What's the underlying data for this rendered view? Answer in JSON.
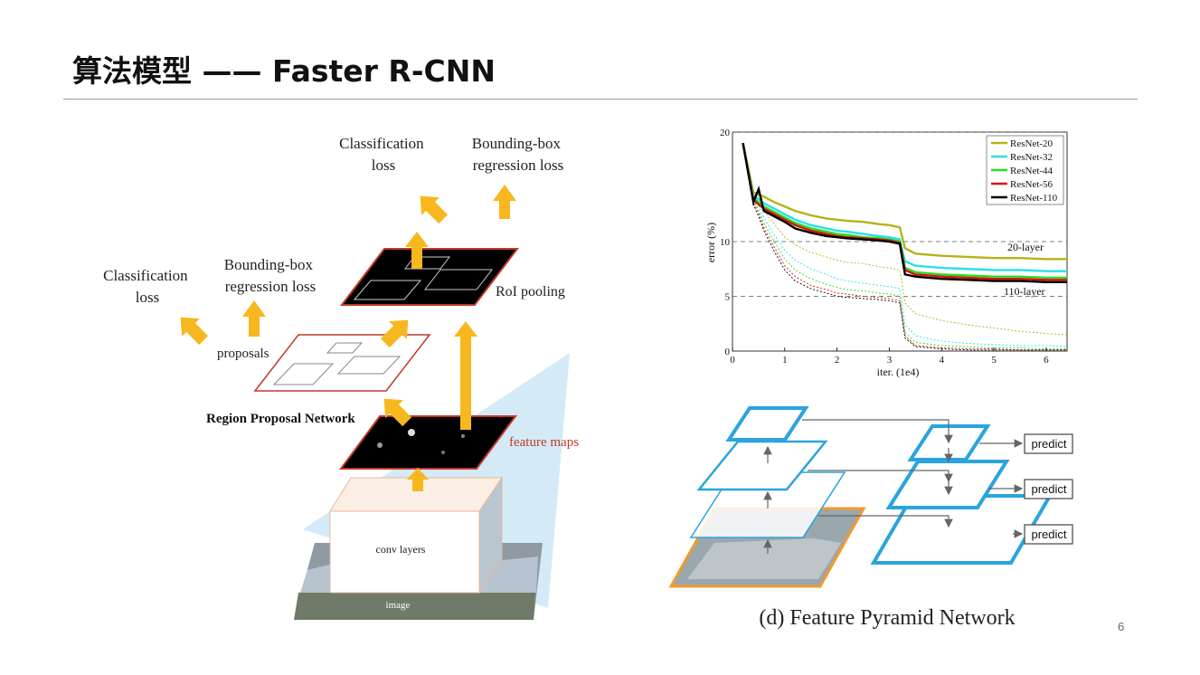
{
  "slide": {
    "title": "算法模型 —— Faster R-CNN",
    "page_number": "6"
  },
  "faster_rcnn": {
    "top_classification_loss": [
      "Classification",
      "loss"
    ],
    "top_bbox_regression_loss": [
      "Bounding-box",
      "regression loss"
    ],
    "left_classification_loss": [
      "Classification",
      "loss"
    ],
    "left_bbox_regression_loss": [
      "Bounding-box",
      "regression loss"
    ],
    "proposals_label": "proposals",
    "roi_pooling_label": "RoI pooling",
    "rpn_label": "Region Proposal Network",
    "feature_maps_label": "feature maps",
    "conv_layers_label": "conv layers",
    "image_label": "image",
    "colors": {
      "arrow": "#f7b71f",
      "frame_red": "#c0392b",
      "cone": "#bfe0f2"
    }
  },
  "chart_data": {
    "type": "line",
    "xlabel": "iter. (1e4)",
    "ylabel": "error (%)",
    "xlim": [
      0,
      6.4
    ],
    "ylim": [
      0,
      20
    ],
    "xticks": [
      "0",
      "1",
      "2",
      "3",
      "4",
      "5",
      "6"
    ],
    "yticks": [
      "0",
      "5",
      "10",
      "20"
    ],
    "grid": "dashed horizontal at 5, 10, 20",
    "legend_position": "top-right",
    "annotations": [
      "20-layer",
      "110-layer"
    ],
    "x": [
      0.2,
      0.4,
      0.5,
      0.6,
      0.8,
      1.0,
      1.2,
      1.5,
      1.8,
      2.0,
      2.2,
      2.5,
      2.8,
      3.0,
      3.1,
      3.2,
      3.3,
      3.5,
      4.0,
      4.5,
      5.0,
      5.5,
      6.0,
      6.4
    ],
    "series": [
      {
        "name": "ResNet-20",
        "color": "#b5b318",
        "train": [
          19,
          14.5,
          14.3,
          14.1,
          13.6,
          13.2,
          12.8,
          12.4,
          12.1,
          12.0,
          11.9,
          11.8,
          11.6,
          11.5,
          11.4,
          11.3,
          9.4,
          8.9,
          8.7,
          8.6,
          8.5,
          8.5,
          8.4,
          8.4
        ],
        "test": [
          19,
          14.3,
          13.8,
          12.8,
          11.6,
          10.4,
          9.7,
          9.0,
          8.6,
          8.3,
          8.1,
          8.0,
          7.7,
          7.6,
          7.5,
          7.4,
          4.4,
          3.4,
          2.8,
          2.4,
          2.1,
          1.8,
          1.6,
          1.5
        ]
      },
      {
        "name": "ResNet-32",
        "color": "#29e0e8",
        "train": [
          19,
          14.2,
          13.9,
          13.5,
          13.0,
          12.5,
          12.0,
          11.5,
          11.2,
          11.0,
          10.9,
          10.7,
          10.5,
          10.4,
          10.3,
          10.2,
          8.2,
          7.8,
          7.6,
          7.5,
          7.4,
          7.4,
          7.3,
          7.3
        ],
        "test": [
          19,
          14.0,
          13.3,
          12.2,
          10.6,
          9.2,
          8.3,
          7.5,
          7.0,
          6.6,
          6.4,
          6.2,
          6.0,
          5.9,
          5.8,
          5.7,
          2.4,
          1.4,
          0.9,
          0.7,
          0.6,
          0.5,
          0.5,
          0.4
        ]
      },
      {
        "name": "ResNet-44",
        "color": "#20e020",
        "train": [
          19,
          14.0,
          13.6,
          13.2,
          12.7,
          12.2,
          11.7,
          11.2,
          10.9,
          10.7,
          10.6,
          10.4,
          10.3,
          10.2,
          10.1,
          10.0,
          7.6,
          7.2,
          7.0,
          6.9,
          6.8,
          6.8,
          6.7,
          6.7
        ],
        "test": [
          19,
          13.8,
          12.9,
          11.7,
          10.0,
          8.4,
          7.4,
          6.6,
          6.1,
          5.8,
          5.6,
          5.5,
          5.3,
          5.2,
          5.1,
          5.0,
          1.7,
          0.8,
          0.5,
          0.4,
          0.3,
          0.3,
          0.2,
          0.2
        ]
      },
      {
        "name": "ResNet-56",
        "color": "#e01010",
        "train": [
          19,
          13.8,
          13.4,
          13.0,
          12.5,
          12.0,
          11.5,
          11.0,
          10.7,
          10.5,
          10.4,
          10.3,
          10.2,
          10.1,
          10.0,
          9.9,
          7.4,
          7.0,
          6.8,
          6.7,
          6.6,
          6.6,
          6.5,
          6.5
        ],
        "test": [
          19,
          13.6,
          12.6,
          11.3,
          9.5,
          7.8,
          6.8,
          6.0,
          5.6,
          5.3,
          5.2,
          5.0,
          4.9,
          4.8,
          4.7,
          4.6,
          1.4,
          0.5,
          0.3,
          0.2,
          0.2,
          0.1,
          0.1,
          0.1
        ]
      },
      {
        "name": "ResNet-110",
        "color": "#000000",
        "train": [
          19,
          13.6,
          14.8,
          12.8,
          12.3,
          11.8,
          11.2,
          10.8,
          10.5,
          10.4,
          10.3,
          10.2,
          10.1,
          10.0,
          9.9,
          9.8,
          7.0,
          6.8,
          6.6,
          6.5,
          6.4,
          6.4,
          6.3,
          6.3
        ],
        "test": [
          19,
          13.4,
          12.3,
          11.0,
          9.1,
          7.4,
          6.4,
          5.7,
          5.3,
          5.0,
          4.9,
          4.8,
          4.7,
          4.6,
          4.5,
          4.4,
          1.2,
          0.4,
          0.2,
          0.1,
          0.1,
          0.1,
          0.1,
          0.1
        ]
      }
    ]
  },
  "fpn": {
    "caption": "(d) Feature Pyramid Network",
    "predict_labels": [
      "predict",
      "predict",
      "predict"
    ],
    "colors": {
      "frame": "#2aa4de",
      "image_frame": "#f29a2e",
      "arrow": "#666666"
    }
  }
}
